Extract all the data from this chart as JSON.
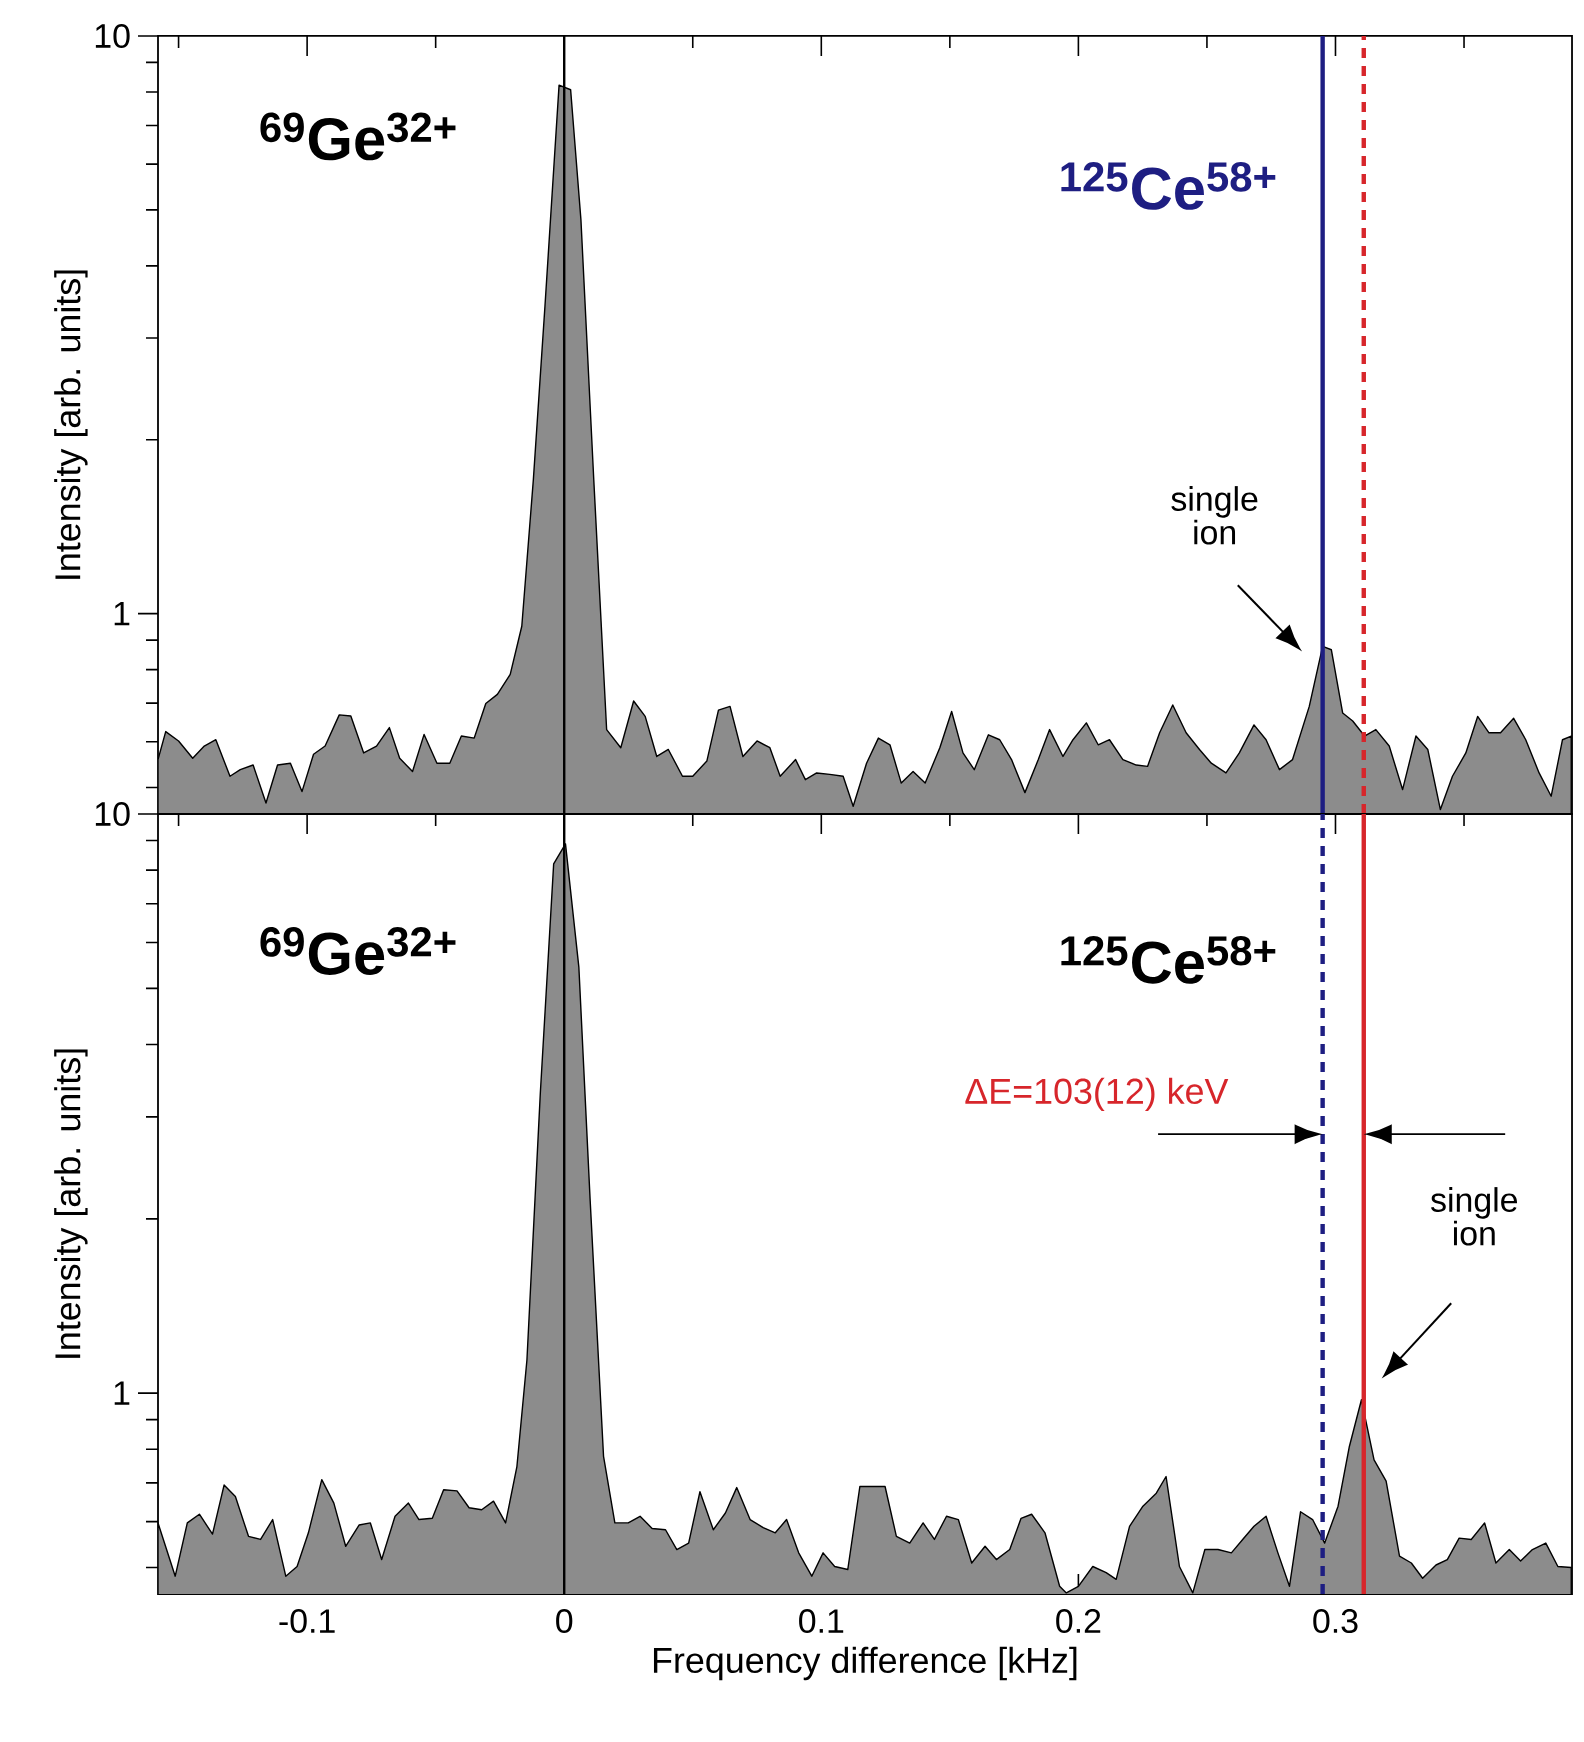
{
  "chart_data": [
    {
      "type": "area",
      "ylabel": "Intensity [arb. units]",
      "log": "y",
      "tick_labels": "y",
      "xlim": [
        -0.158,
        0.392
      ],
      "ylim": [
        0.45,
        10
      ],
      "xticks": [
        {
          "value": -0.15,
          "label": null
        },
        -0.1,
        {
          "value": -0.05,
          "label": null
        },
        0,
        {
          "value": 0.05,
          "label": null
        },
        0.1,
        {
          "value": 0.15,
          "label": null
        },
        0.2,
        {
          "value": 0.25,
          "label": null
        },
        0.3,
        {
          "value": 0.35,
          "label": null
        }
      ],
      "yticks": [
        {
          "value": 0.5,
          "label": null
        },
        {
          "value": 0.6,
          "label": null
        },
        {
          "value": 0.7,
          "label": null
        },
        {
          "value": 0.8,
          "label": null
        },
        {
          "value": 0.9,
          "label": null
        },
        1,
        {
          "value": 2,
          "label": null
        },
        {
          "value": 3,
          "label": null
        },
        {
          "value": 4,
          "label": null
        },
        {
          "value": 5,
          "label": null
        },
        {
          "value": 6,
          "label": null
        },
        {
          "value": 7,
          "label": null
        },
        {
          "value": 8,
          "label": null
        },
        {
          "value": 9,
          "label": null
        },
        10
      ],
      "x": [
        -0.158,
        -0.155,
        -0.15,
        -0.1445,
        -0.14,
        -0.1355,
        -0.13,
        -0.126,
        -0.121,
        -0.116,
        -0.1115,
        -0.1065,
        -0.102,
        -0.0975,
        -0.093,
        -0.0875,
        -0.083,
        -0.078,
        -0.073,
        -0.068,
        -0.064,
        -0.059,
        -0.0545,
        -0.0495,
        -0.0445,
        -0.04,
        -0.035,
        -0.0305,
        -0.026,
        -0.021,
        -0.0165,
        -0.012,
        -0.0075,
        -0.002,
        0.0025,
        0.0065,
        0.0115,
        0.0165,
        0.022,
        0.027,
        0.0315,
        0.036,
        0.0405,
        0.046,
        0.05,
        0.0555,
        0.06,
        0.0645,
        0.0695,
        0.075,
        0.08,
        0.084,
        0.09,
        0.0938,
        0.0982,
        0.1033,
        0.1085,
        0.1124,
        0.1176,
        0.1222,
        0.1267,
        0.1311,
        0.1357,
        0.1404,
        0.1461,
        0.1507,
        0.1551,
        0.1595,
        0.165,
        0.1694,
        0.174,
        0.1792,
        0.1844,
        0.1888,
        0.194,
        0.1979,
        0.2031,
        0.2077,
        0.2121,
        0.2173,
        0.2225,
        0.2269,
        0.2316,
        0.2367,
        0.2419,
        0.2471,
        0.2517,
        0.2574,
        0.2626,
        0.2683,
        0.273,
        0.2782,
        0.2833,
        0.2898,
        0.295,
        0.2984,
        0.3028,
        0.3067,
        0.3113,
        0.3157,
        0.3209,
        0.3261,
        0.3313,
        0.3359,
        0.3408,
        0.3455,
        0.3507,
        0.3553,
        0.3597,
        0.3642,
        0.3693,
        0.374,
        0.3792,
        0.3839,
        0.3883,
        0.3917
      ],
      "series": [
        {
          "color": "#8c8c8c",
          "values": [
            0.559,
            0.625,
            0.602,
            0.562,
            0.59,
            0.605,
            0.523,
            0.537,
            0.547,
            0.47,
            0.547,
            0.551,
            0.492,
            0.571,
            0.59,
            0.668,
            0.665,
            0.574,
            0.59,
            0.635,
            0.562,
            0.533,
            0.618,
            0.551,
            0.551,
            0.614,
            0.609,
            0.699,
            0.725,
            0.785,
            0.951,
            1.706,
            3.4,
            8.22,
            8.07,
            4.81,
            1.706,
            0.63,
            0.586,
            0.706,
            0.664,
            0.566,
            0.582,
            0.523,
            0.523,
            0.556,
            0.681,
            0.691,
            0.566,
            0.602,
            0.586,
            0.523,
            0.559,
            0.516,
            0.53,
            0.527,
            0.523,
            0.464,
            0.551,
            0.609,
            0.593,
            0.509,
            0.533,
            0.509,
            0.586,
            0.677,
            0.574,
            0.537,
            0.617,
            0.605,
            0.559,
            0.49,
            0.559,
            0.63,
            0.566,
            0.605,
            0.647,
            0.593,
            0.605,
            0.559,
            0.547,
            0.544,
            0.622,
            0.695,
            0.622,
            0.582,
            0.551,
            0.53,
            0.574,
            0.642,
            0.605,
            0.537,
            0.559,
            0.691,
            0.878,
            0.866,
            0.673,
            0.652,
            0.614,
            0.63,
            0.59,
            0.496,
            0.614,
            0.582,
            0.458,
            0.523,
            0.574,
            0.664,
            0.622,
            0.622,
            0.659,
            0.605,
            0.53,
            0.483,
            0.605,
            0.614
          ]
        }
      ],
      "ref_lines": [
        {
          "axis": "x",
          "value": 0,
          "color": "#000000"
        },
        {
          "axis": "x",
          "value": 0.295,
          "color": "#1e1e82",
          "label": "$^{125}$Ce$^{58+}$"
        },
        {
          "axis": "x",
          "value": 0.311,
          "color": "#d7262b",
          "line_style": "dashed"
        }
      ],
      "annotations": [
        "$^{69}$Ge$^{32+}$",
        "single ion"
      ]
    },
    {
      "type": "area",
      "xlabel": "Frequency difference [kHz]",
      "ylabel": "Intensity [arb. units]",
      "log": "y",
      "xlim": [
        -0.158,
        0.392
      ],
      "ylim": [
        0.45,
        10
      ],
      "xticks": [
        {
          "value": -0.15,
          "label": null
        },
        -0.1,
        {
          "value": -0.05,
          "label": null
        },
        0,
        {
          "value": 0.05,
          "label": null
        },
        0.1,
        {
          "value": 0.15,
          "label": null
        },
        0.2,
        {
          "value": 0.25,
          "label": null
        },
        0.3,
        {
          "value": 0.35,
          "label": null
        }
      ],
      "yticks": [
        {
          "value": 0.5,
          "label": null
        },
        {
          "value": 0.6,
          "label": null
        },
        {
          "value": 0.7,
          "label": null
        },
        {
          "value": 0.8,
          "label": null
        },
        {
          "value": 0.9,
          "label": null
        },
        1,
        {
          "value": 2,
          "label": null
        },
        {
          "value": 3,
          "label": null
        },
        {
          "value": 4,
          "label": null
        },
        {
          "value": 5,
          "label": null
        },
        {
          "value": 6,
          "label": null
        },
        {
          "value": 7,
          "label": null
        },
        {
          "value": 8,
          "label": null
        },
        {
          "value": 9,
          "label": null
        },
        10
      ],
      "x": [
        -0.158,
        -0.1513,
        -0.1466,
        -0.1419,
        -0.1368,
        -0.1323,
        -0.1279,
        -0.1228,
        -0.1181,
        -0.1134,
        -0.1083,
        -0.1039,
        -0.0995,
        -0.0943,
        -0.0896,
        -0.085,
        -0.0798,
        -0.0754,
        -0.071,
        -0.0658,
        -0.0606,
        -0.0565,
        -0.0513,
        -0.0469,
        -0.0417,
        -0.037,
        -0.0321,
        -0.0275,
        -0.0228,
        -0.0184,
        -0.0145,
        -0.0093,
        -0.0041,
        0.0005,
        0.0057,
        0.0101,
        0.0153,
        0.0197,
        0.0249,
        0.0295,
        0.0342,
        0.0394,
        0.0438,
        0.0484,
        0.0528,
        0.058,
        0.0627,
        0.0671,
        0.0723,
        0.0774,
        0.0821,
        0.0865,
        0.0912,
        0.0963,
        0.1007,
        0.1052,
        0.1103,
        0.115,
        0.1197,
        0.1248,
        0.1292,
        0.1344,
        0.1396,
        0.144,
        0.1487,
        0.1533,
        0.1585,
        0.1637,
        0.1681,
        0.1733,
        0.1777,
        0.1818,
        0.187,
        0.1927,
        0.1953,
        0.2,
        0.2056,
        0.2108,
        0.2147,
        0.2199,
        0.2251,
        0.2303,
        0.2341,
        0.2393,
        0.2445,
        0.2492,
        0.2543,
        0.2595,
        0.2639,
        0.2683,
        0.273,
        0.2776,
        0.2821,
        0.2864,
        0.2911,
        0.2958,
        0.301,
        0.3054,
        0.3101,
        0.315,
        0.3197,
        0.3249,
        0.3295,
        0.3339,
        0.3391,
        0.3435,
        0.3481,
        0.3528,
        0.358,
        0.3624,
        0.3676,
        0.372,
        0.3766,
        0.3818,
        0.3865,
        0.3917
      ],
      "series": [
        {
          "color": "#8c8c8c",
          "values": [
            0.597,
            0.483,
            0.597,
            0.618,
            0.571,
            0.694,
            0.663,
            0.566,
            0.559,
            0.605,
            0.483,
            0.502,
            0.574,
            0.709,
            0.646,
            0.544,
            0.592,
            0.597,
            0.516,
            0.613,
            0.646,
            0.605,
            0.608,
            0.681,
            0.678,
            0.634,
            0.629,
            0.651,
            0.597,
            0.747,
            1.141,
            3.29,
            8.2,
            8.88,
            5.44,
            2.15,
            0.778,
            0.597,
            0.597,
            0.613,
            0.584,
            0.581,
            0.537,
            0.551,
            0.676,
            0.581,
            0.621,
            0.687,
            0.605,
            0.586,
            0.574,
            0.605,
            0.53,
            0.483,
            0.53,
            0.502,
            0.496,
            0.69,
            0.69,
            0.69,
            0.566,
            0.551,
            0.597,
            0.559,
            0.613,
            0.605,
            0.509,
            0.544,
            0.516,
            0.537,
            0.608,
            0.618,
            0.574,
            0.464,
            0.452,
            0.464,
            0.502,
            0.49,
            0.477,
            0.589,
            0.638,
            0.672,
            0.718,
            0.502,
            0.452,
            0.537,
            0.537,
            0.53,
            0.559,
            0.589,
            0.613,
            0.53,
            0.464,
            0.624,
            0.605,
            0.551,
            0.638,
            0.809,
            0.974,
            0.767,
            0.705,
            0.523,
            0.509,
            0.479,
            0.505,
            0.516,
            0.562,
            0.559,
            0.597,
            0.509,
            0.537,
            0.513,
            0.537,
            0.551,
            0.502,
            0.5
          ]
        }
      ],
      "ref_lines": [
        {
          "axis": "x",
          "value": 0,
          "color": "#000000"
        },
        {
          "axis": "x",
          "value": 0.295,
          "color": "#1e1e82",
          "line_style": "dashed"
        },
        {
          "axis": "x",
          "value": 0.311,
          "color": "#d7262b"
        }
      ],
      "annotations": [
        "$^{69}$Ge$^{32+}$",
        "$^{125}$Ce$^{58+}$",
        {
          "text": "ΔE=103(12) keV",
          "x": 0.295,
          "y": 2.8
        },
        "single ion"
      ]
    }
  ]
}
